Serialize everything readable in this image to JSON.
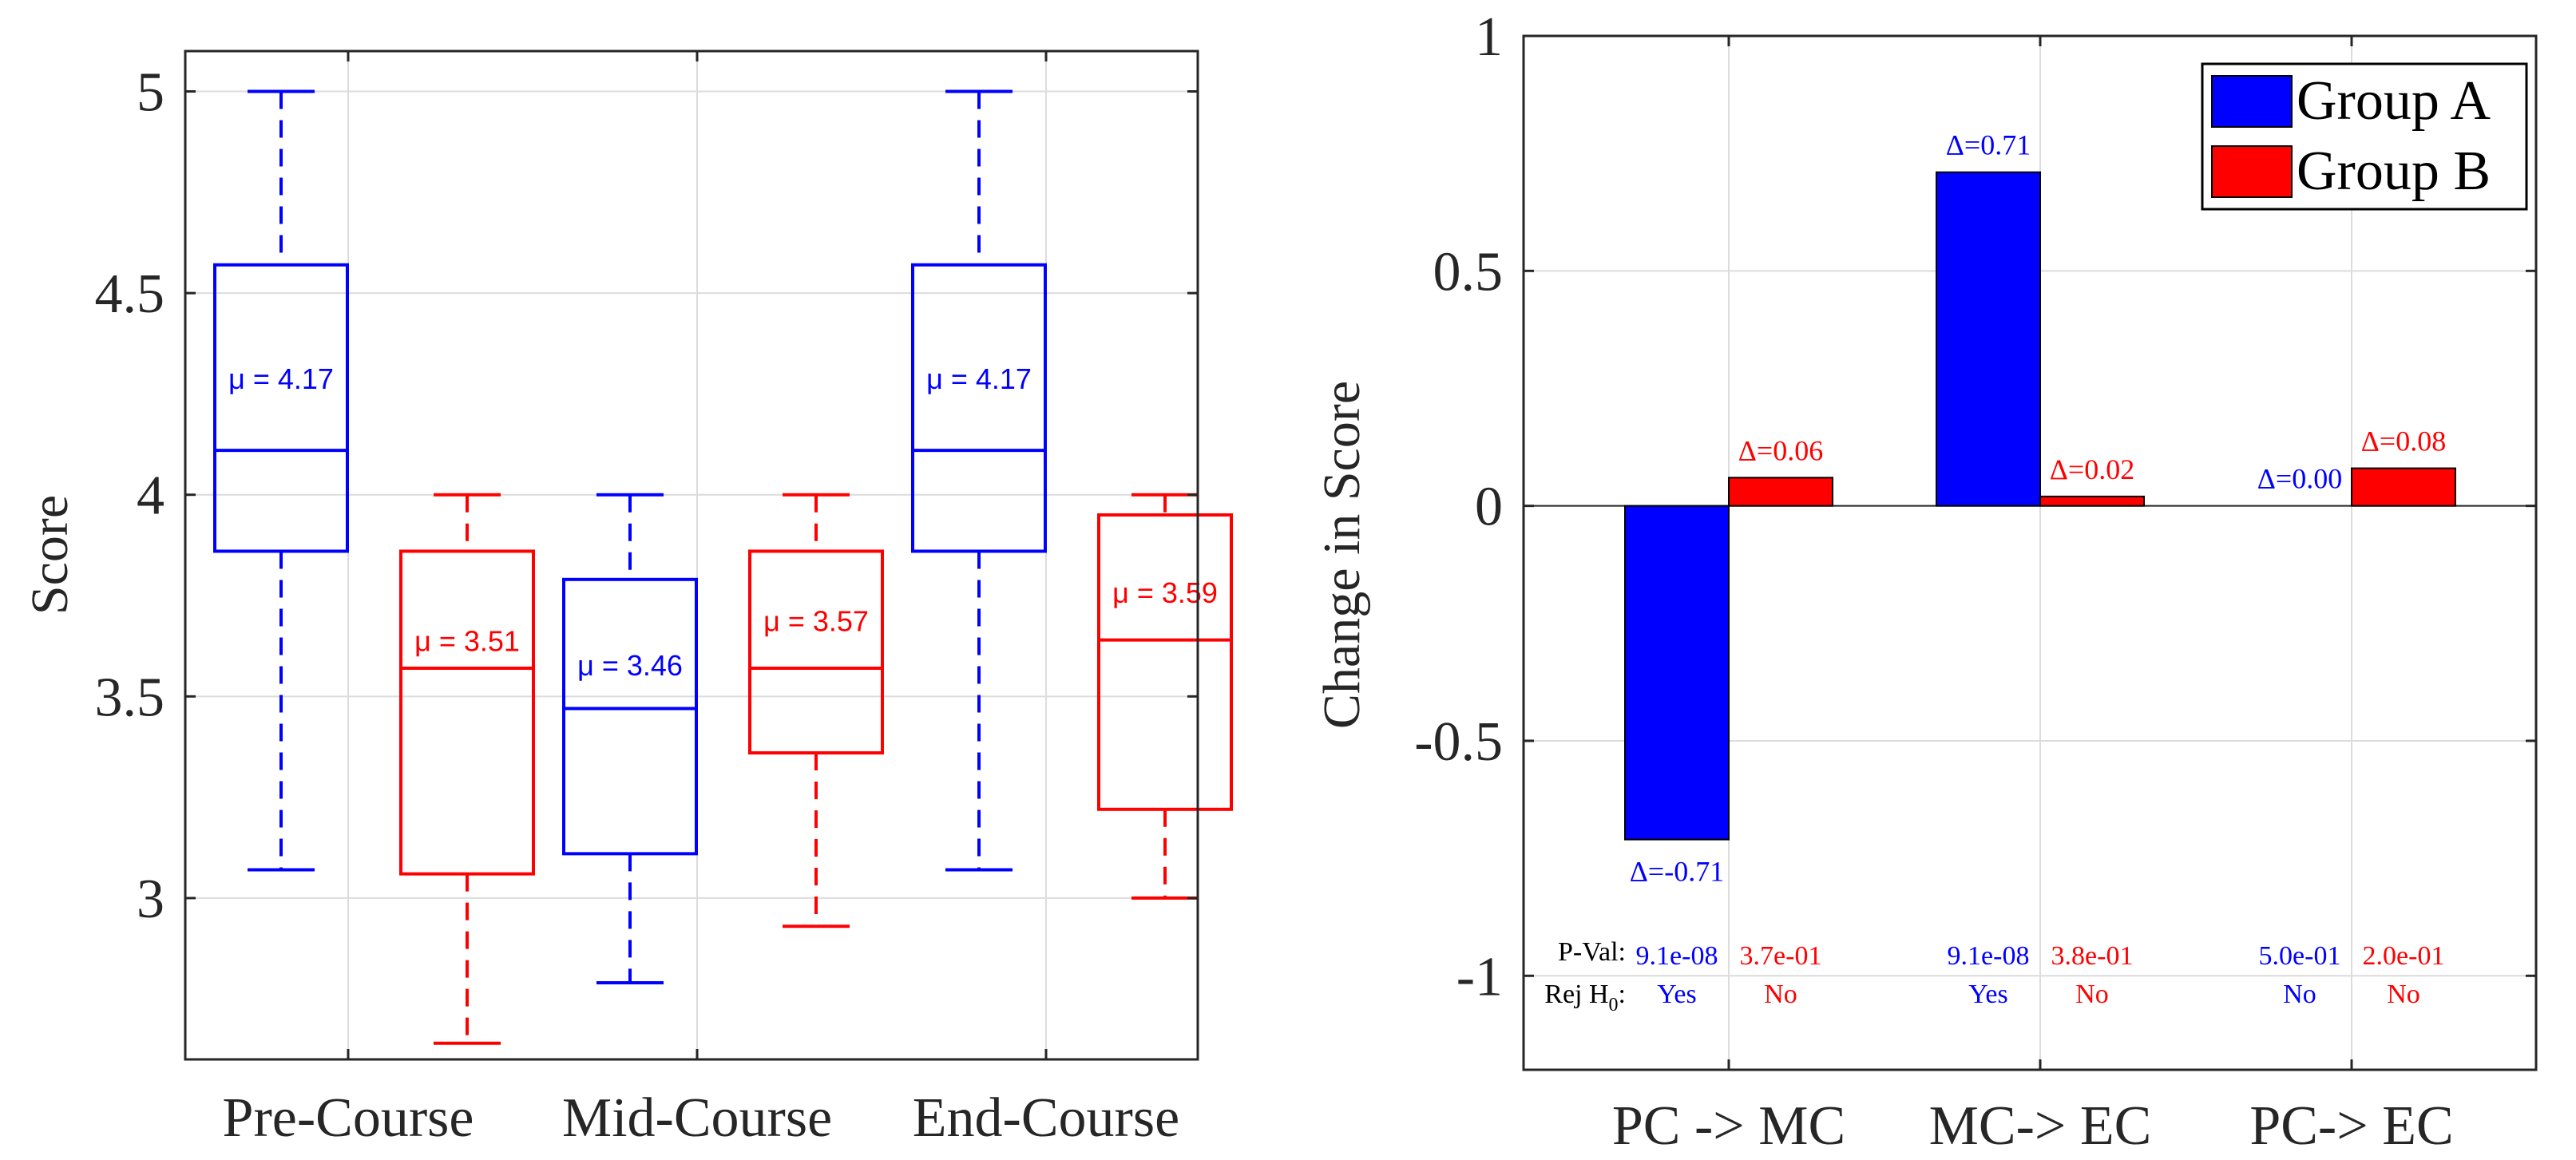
{
  "colors": {
    "group_a": "#0000ff",
    "group_b": "#ff0000",
    "axis": "#262626",
    "grid": "#dcdcdc"
  },
  "chart_data": [
    {
      "type": "box",
      "title": "",
      "xlabel": "",
      "ylabel": "Score",
      "ylim": [
        2.6,
        5.1
      ],
      "yticks": [
        "3",
        "3.5",
        "4",
        "4.5",
        "5"
      ],
      "yticks_values": [
        3,
        3.5,
        4,
        4.5,
        5
      ],
      "grid": true,
      "categories": [
        "Pre-Course",
        "Mid-Course",
        "End-Course"
      ],
      "series": [
        {
          "color": "#0000ff",
          "boxes": [
            {
              "min": 3.07,
              "q1": 3.86,
              "median": 4.11,
              "q3": 4.57,
              "max": 5.0,
              "mean_label": "μ = 4.17",
              "mean_y": 4.29
            },
            {
              "min": 2.79,
              "q1": 3.11,
              "median": 3.47,
              "q3": 3.79,
              "max": 4.0,
              "mean_label": "μ = 3.46",
              "mean_y": 3.58
            },
            {
              "min": 3.07,
              "q1": 3.86,
              "median": 4.11,
              "q3": 4.57,
              "max": 5.0,
              "mean_label": "μ = 4.17",
              "mean_y": 4.29
            }
          ]
        },
        {
          "color": "#ff0000",
          "boxes": [
            {
              "min": 2.64,
              "q1": 3.06,
              "median": 3.57,
              "q3": 3.86,
              "max": 4.0,
              "mean_label": "μ = 3.51",
              "mean_y": 3.64
            },
            {
              "min": 2.93,
              "q1": 3.36,
              "median": 3.57,
              "q3": 3.86,
              "max": 4.0,
              "mean_label": "μ = 3.57",
              "mean_y": 3.69
            },
            {
              "min": 3.0,
              "q1": 3.22,
              "median": 3.64,
              "q3": 3.95,
              "max": 4.0,
              "mean_label": "μ = 3.59",
              "mean_y": 3.76
            }
          ]
        }
      ]
    },
    {
      "type": "bar",
      "title": "",
      "xlabel": "",
      "ylabel": "Change in Score",
      "ylim": [
        -1.2,
        1.0
      ],
      "yticks": [
        "-1",
        "-0.5",
        "0",
        "0.5",
        "1"
      ],
      "yticks_values": [
        -1,
        -0.5,
        0,
        0.5,
        1
      ],
      "grid": true,
      "legend_position": "top-right",
      "categories": [
        "PC -> MC",
        "MC-> EC",
        "PC-> EC"
      ],
      "series": [
        {
          "name": "Group A",
          "color": "#0000ff",
          "values": [
            -0.71,
            0.71,
            0.0
          ],
          "delta_labels": [
            "Δ=-0.71",
            "Δ=0.71",
            "Δ=0.00"
          ],
          "p_values": [
            "9.1e-08",
            "9.1e-08",
            "5.0e-01"
          ],
          "reject": [
            "Yes",
            "Yes",
            "No"
          ]
        },
        {
          "name": "Group B",
          "color": "#ff0000",
          "values": [
            0.06,
            0.02,
            0.08
          ],
          "delta_labels": [
            "Δ=0.06",
            "Δ=0.02",
            "Δ=0.08"
          ],
          "p_values": [
            "3.7e-01",
            "3.8e-01",
            "2.0e-01"
          ],
          "reject": [
            "No",
            "No",
            "No"
          ]
        }
      ],
      "row_labels": {
        "pval": "P-Val:",
        "reject": "Rej H",
        "reject_sub": "0",
        "reject_suffix": ":"
      }
    }
  ]
}
